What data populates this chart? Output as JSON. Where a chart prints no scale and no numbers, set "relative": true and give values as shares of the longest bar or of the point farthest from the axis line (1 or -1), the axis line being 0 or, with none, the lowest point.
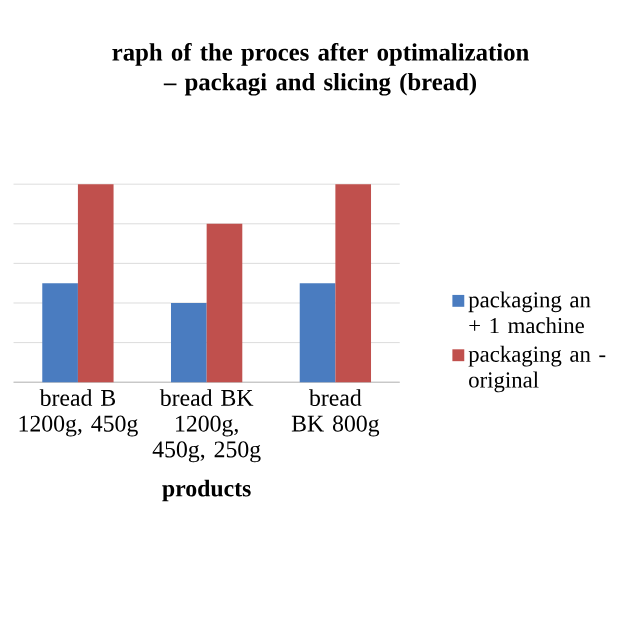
{
  "chart_data": {
    "type": "bar",
    "title": "raph of the proces after optimalization – packagi and slicing (bread)",
    "xlabel": "products",
    "categories": [
      "bread B 1200g, 450g",
      "bread BK 1200g, 450g, 250g",
      "bread BK 800g"
    ],
    "relative": true,
    "grid": "y",
    "legend": "right",
    "series": [
      {
        "name": "packaging an + 1 machine",
        "color": "#4a7cc0",
        "values": [
          0.5,
          0.4,
          0.5
        ]
      },
      {
        "name": "packaging an - original",
        "color": "#c0504d",
        "values": [
          1,
          0.8,
          1
        ]
      }
    ]
  }
}
